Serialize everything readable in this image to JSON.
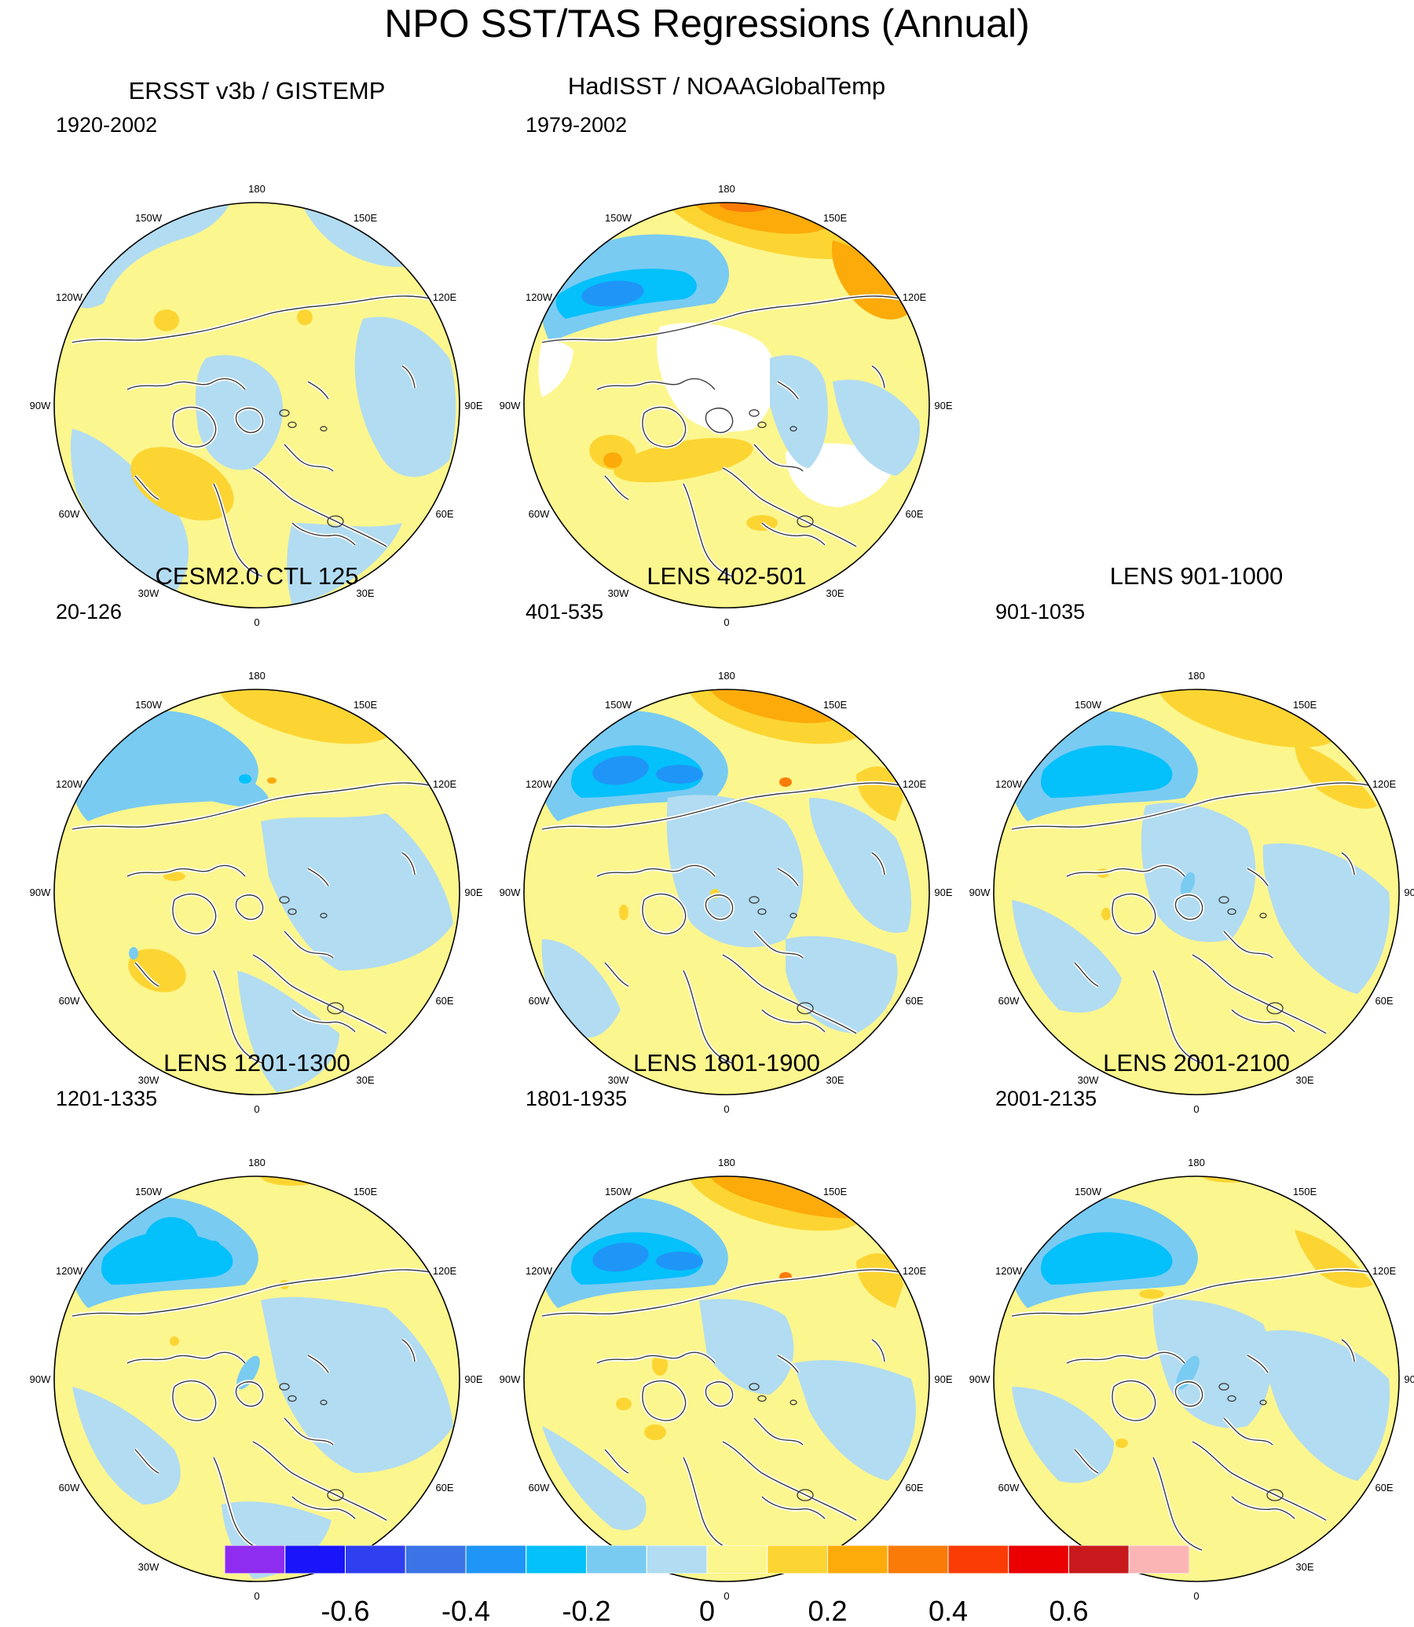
{
  "title": "NPO SST/TAS Regressions (Annual)",
  "panels": [
    {
      "id": "p1",
      "title": "ERSST v3b / GISTEMP",
      "period": "1920-2002",
      "pattern": "obs1"
    },
    {
      "id": "p2",
      "title": "HadISST / NOAAGlobalTemp",
      "period": "1979-2002",
      "pattern": "obs2"
    },
    {
      "id": "p3",
      "title": "CESM2.0 CTL 125",
      "period": "20-126",
      "pattern": "ctl"
    },
    {
      "id": "p4",
      "title": "LENS 402-501",
      "period": "401-535",
      "pattern": "strong"
    },
    {
      "id": "p5",
      "title": "LENS 901-1000",
      "period": "901-1035",
      "pattern": "medium"
    },
    {
      "id": "p6",
      "title": "LENS 1201-1300",
      "period": "1201-1335",
      "pattern": "weak"
    },
    {
      "id": "p7",
      "title": "LENS 1801-1900",
      "period": "1801-1935",
      "pattern": "strong2"
    },
    {
      "id": "p8",
      "title": "LENS 2001-2100",
      "period": "2001-2135",
      "pattern": "medium2"
    }
  ],
  "longitude_labels": [
    "180",
    "150E",
    "120E",
    "90E",
    "60E",
    "30E",
    "0",
    "30W",
    "60W",
    "90W",
    "120W",
    "150W"
  ],
  "colorbar": {
    "colors": [
      "#8e2cf0",
      "#1a14fa",
      "#2e3ff0",
      "#3a74e6",
      "#1f96f7",
      "#04c0fb",
      "#79cbf2",
      "#b2dcf1",
      "#fcf68e",
      "#fcd533",
      "#fcab0a",
      "#fa7b08",
      "#fb3c04",
      "#ea0000",
      "#c81a1c",
      "#fbb5b5"
    ],
    "ticks": [
      "-0.6",
      "-0.4",
      "-0.2",
      "0",
      "0.2",
      "0.4",
      "0.6"
    ]
  },
  "palette": {
    "neg1": "#b2dcf1",
    "neg2": "#79cbf2",
    "neg3": "#04c0fb",
    "neg4": "#1f96f7",
    "neg5": "#3a74e6",
    "pos1": "#fcf68e",
    "pos2": "#fcd533",
    "pos3": "#fcab0a",
    "pos4": "#fa7b08",
    "pos5": "#fb3c04",
    "pos6": "#ea0000"
  }
}
